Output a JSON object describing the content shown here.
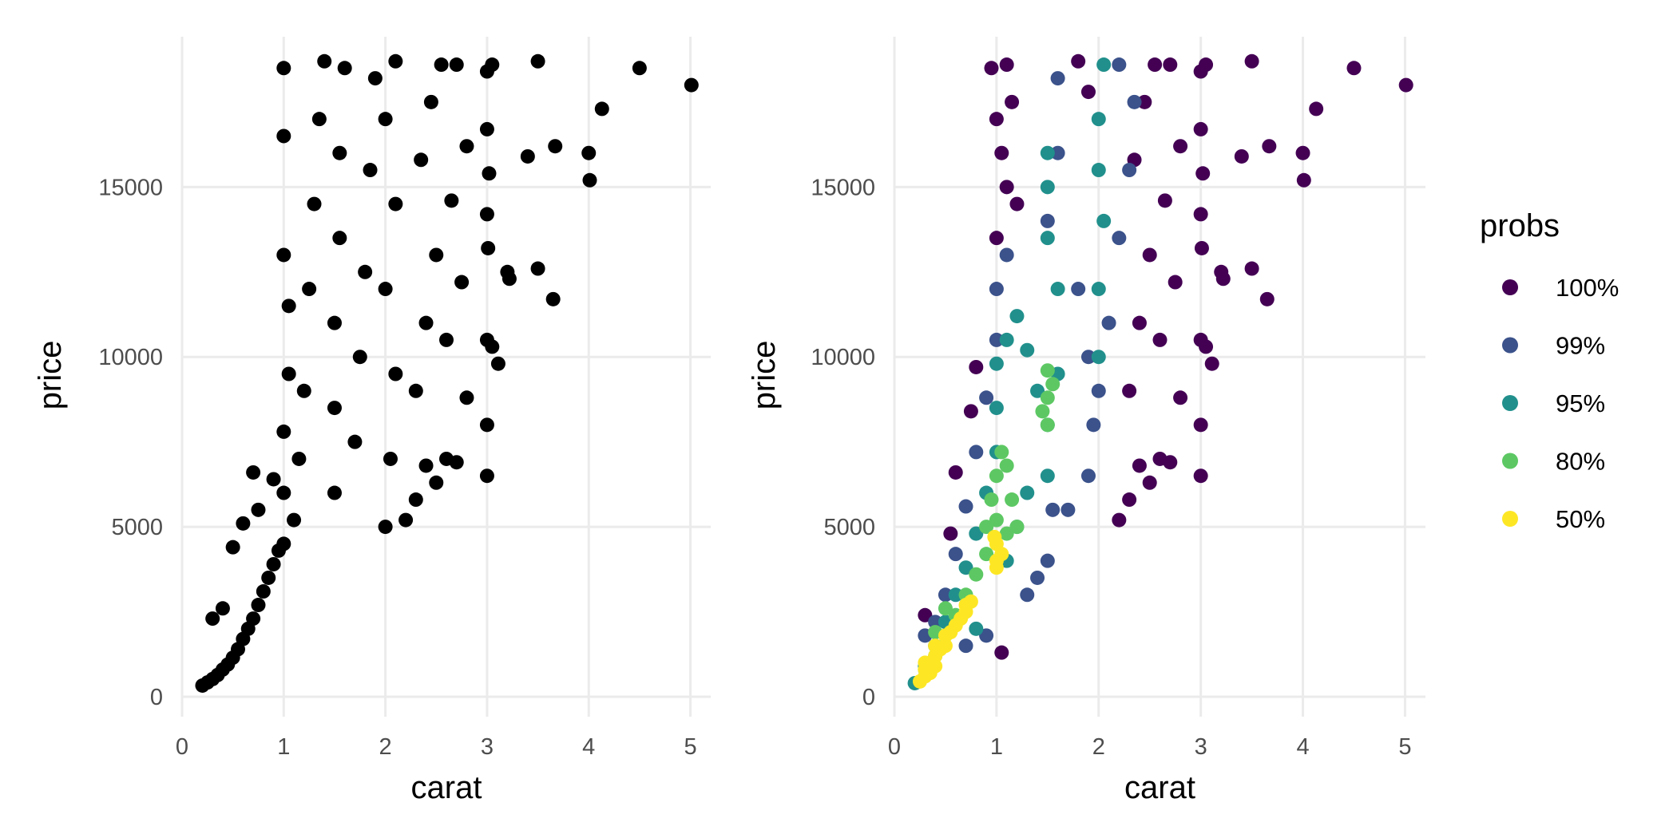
{
  "chart_data": [
    {
      "type": "scatter",
      "panel": "left",
      "xlabel": "carat",
      "ylabel": "price",
      "xlim": [
        0,
        5.2
      ],
      "ylim": [
        0,
        19000
      ],
      "xticks": [
        0,
        1,
        2,
        3,
        4,
        5
      ],
      "yticks": [
        0,
        5000,
        10000,
        15000
      ],
      "grid": true,
      "point_color": "#000000",
      "points": [
        [
          0.2,
          330
        ],
        [
          0.25,
          420
        ],
        [
          0.3,
          520
        ],
        [
          0.35,
          640
        ],
        [
          0.4,
          800
        ],
        [
          0.45,
          950
        ],
        [
          0.5,
          1150
        ],
        [
          0.55,
          1400
        ],
        [
          0.6,
          1700
        ],
        [
          0.65,
          2000
        ],
        [
          0.7,
          2300
        ],
        [
          0.75,
          2700
        ],
        [
          0.8,
          3100
        ],
        [
          0.85,
          3500
        ],
        [
          0.9,
          3900
        ],
        [
          0.95,
          4300
        ],
        [
          0.5,
          4400
        ],
        [
          0.6,
          5100
        ],
        [
          0.7,
          6600
        ],
        [
          0.3,
          2300
        ],
        [
          0.4,
          2600
        ],
        [
          0.75,
          5500
        ],
        [
          0.9,
          6400
        ],
        [
          1.0,
          4500
        ],
        [
          1.0,
          6000
        ],
        [
          1.0,
          7800
        ],
        [
          1.05,
          9500
        ],
        [
          1.05,
          11500
        ],
        [
          1.0,
          13000
        ],
        [
          1.0,
          16500
        ],
        [
          1.0,
          18500
        ],
        [
          1.1,
          5200
        ],
        [
          1.15,
          7000
        ],
        [
          1.2,
          9000
        ],
        [
          1.25,
          12000
        ],
        [
          1.3,
          14500
        ],
        [
          1.35,
          17000
        ],
        [
          1.4,
          18700
        ],
        [
          1.5,
          6000
        ],
        [
          1.5,
          8500
        ],
        [
          1.5,
          11000
        ],
        [
          1.55,
          13500
        ],
        [
          1.55,
          16000
        ],
        [
          1.6,
          18500
        ],
        [
          1.7,
          7500
        ],
        [
          1.75,
          10000
        ],
        [
          1.8,
          12500
        ],
        [
          1.85,
          15500
        ],
        [
          1.9,
          18200
        ],
        [
          2.0,
          5000
        ],
        [
          2.05,
          7000
        ],
        [
          2.1,
          9500
        ],
        [
          2.0,
          12000
        ],
        [
          2.1,
          14500
        ],
        [
          2.0,
          17000
        ],
        [
          2.1,
          18700
        ],
        [
          2.2,
          5200
        ],
        [
          2.3,
          5800
        ],
        [
          2.4,
          6800
        ],
        [
          2.5,
          6300
        ],
        [
          2.3,
          9000
        ],
        [
          2.4,
          11000
        ],
        [
          2.5,
          13000
        ],
        [
          2.35,
          15800
        ],
        [
          2.45,
          17500
        ],
        [
          2.55,
          18600
        ],
        [
          2.6,
          7000
        ],
        [
          2.7,
          6900
        ],
        [
          2.8,
          8800
        ],
        [
          2.6,
          10500
        ],
        [
          2.75,
          12200
        ],
        [
          2.65,
          14600
        ],
        [
          2.8,
          16200
        ],
        [
          2.7,
          18600
        ],
        [
          3.0,
          6500
        ],
        [
          3.0,
          8000
        ],
        [
          3.0,
          10500
        ],
        [
          3.01,
          13200
        ],
        [
          3.0,
          14200
        ],
        [
          3.02,
          15400
        ],
        [
          3.0,
          16700
        ],
        [
          3.0,
          18400
        ],
        [
          3.05,
          18600
        ],
        [
          3.05,
          10300
        ],
        [
          3.11,
          9800
        ],
        [
          3.22,
          12300
        ],
        [
          3.2,
          12500
        ],
        [
          3.4,
          15900
        ],
        [
          3.5,
          12600
        ],
        [
          3.5,
          18700
        ],
        [
          3.65,
          11700
        ],
        [
          3.67,
          16200
        ],
        [
          4.0,
          16000
        ],
        [
          4.01,
          15200
        ],
        [
          4.13,
          17300
        ],
        [
          4.5,
          18500
        ],
        [
          5.01,
          18000
        ]
      ]
    },
    {
      "type": "scatter",
      "panel": "right",
      "xlabel": "carat",
      "ylabel": "price",
      "xlim": [
        0,
        5.2
      ],
      "ylim": [
        0,
        19000
      ],
      "xticks": [
        0,
        1,
        2,
        3,
        4,
        5
      ],
      "yticks": [
        0,
        5000,
        10000,
        15000
      ],
      "grid": true,
      "legend": {
        "title": "probs",
        "placement": "right",
        "entries": [
          {
            "label": "100%",
            "color": "#440154"
          },
          {
            "label": "99%",
            "color": "#3b528b"
          },
          {
            "label": "95%",
            "color": "#21908c"
          },
          {
            "label": "80%",
            "color": "#5dc863"
          },
          {
            "label": "50%",
            "color": "#fde725"
          }
        ]
      },
      "series": [
        {
          "name": "100%",
          "color": "#440154",
          "points": [
            [
              0.95,
              18500
            ],
            [
              1.1,
              18600
            ],
            [
              1.0,
              17000
            ],
            [
              1.05,
              16000
            ],
            [
              1.1,
              15000
            ],
            [
              1.0,
              13500
            ],
            [
              1.2,
              14500
            ],
            [
              1.15,
              17500
            ],
            [
              1.8,
              18700
            ],
            [
              1.9,
              17800
            ],
            [
              2.2,
              5200
            ],
            [
              2.3,
              5800
            ],
            [
              2.4,
              6800
            ],
            [
              2.5,
              6300
            ],
            [
              2.3,
              9000
            ],
            [
              2.4,
              11000
            ],
            [
              2.5,
              13000
            ],
            [
              2.35,
              15800
            ],
            [
              2.45,
              17500
            ],
            [
              2.55,
              18600
            ],
            [
              2.6,
              7000
            ],
            [
              2.7,
              6900
            ],
            [
              2.8,
              8800
            ],
            [
              2.6,
              10500
            ],
            [
              2.75,
              12200
            ],
            [
              2.65,
              14600
            ],
            [
              2.8,
              16200
            ],
            [
              2.7,
              18600
            ],
            [
              3.0,
              6500
            ],
            [
              3.0,
              8000
            ],
            [
              3.0,
              10500
            ],
            [
              3.01,
              13200
            ],
            [
              3.0,
              14200
            ],
            [
              3.02,
              15400
            ],
            [
              3.0,
              16700
            ],
            [
              3.0,
              18400
            ],
            [
              3.05,
              18600
            ],
            [
              3.05,
              10300
            ],
            [
              3.11,
              9800
            ],
            [
              3.22,
              12300
            ],
            [
              3.2,
              12500
            ],
            [
              3.4,
              15900
            ],
            [
              3.5,
              12600
            ],
            [
              3.5,
              18700
            ],
            [
              3.65,
              11700
            ],
            [
              3.67,
              16200
            ],
            [
              4.0,
              16000
            ],
            [
              4.01,
              15200
            ],
            [
              4.13,
              17300
            ],
            [
              4.5,
              18500
            ],
            [
              5.01,
              18000
            ],
            [
              0.55,
              4800
            ],
            [
              0.6,
              6600
            ],
            [
              0.75,
              8400
            ],
            [
              0.8,
              9700
            ],
            [
              1.05,
              1300
            ],
            [
              0.3,
              2400
            ]
          ]
        },
        {
          "name": "99%",
          "color": "#3b528b",
          "points": [
            [
              0.3,
              1800
            ],
            [
              0.4,
              2200
            ],
            [
              0.5,
              3000
            ],
            [
              0.6,
              4200
            ],
            [
              0.7,
              5600
            ],
            [
              0.8,
              7200
            ],
            [
              0.9,
              8800
            ],
            [
              1.0,
              10500
            ],
            [
              1.0,
              12000
            ],
            [
              1.1,
              13000
            ],
            [
              1.5,
              14000
            ],
            [
              1.6,
              16000
            ],
            [
              1.6,
              18200
            ],
            [
              1.8,
              12000
            ],
            [
              1.9,
              10000
            ],
            [
              2.0,
              9000
            ],
            [
              2.1,
              11000
            ],
            [
              2.2,
              13500
            ],
            [
              2.3,
              15500
            ],
            [
              2.35,
              17500
            ],
            [
              2.2,
              18600
            ],
            [
              1.3,
              3000
            ],
            [
              1.4,
              3500
            ],
            [
              1.5,
              4000
            ],
            [
              1.55,
              5500
            ],
            [
              1.7,
              5500
            ],
            [
              1.9,
              6500
            ],
            [
              1.95,
              8000
            ],
            [
              0.7,
              1500
            ],
            [
              0.9,
              1800
            ]
          ]
        },
        {
          "name": "95%",
          "color": "#21908c",
          "points": [
            [
              0.2,
              400
            ],
            [
              0.3,
              900
            ],
            [
              0.4,
              1500
            ],
            [
              0.5,
              2200
            ],
            [
              0.6,
              3000
            ],
            [
              0.7,
              3800
            ],
            [
              0.8,
              4800
            ],
            [
              0.9,
              6000
            ],
            [
              1.0,
              7200
            ],
            [
              1.0,
              8500
            ],
            [
              1.0,
              9800
            ],
            [
              1.1,
              10500
            ],
            [
              1.2,
              11200
            ],
            [
              1.3,
              10200
            ],
            [
              1.4,
              9000
            ],
            [
              1.5,
              8000
            ],
            [
              1.5,
              6500
            ],
            [
              1.6,
              9500
            ],
            [
              1.6,
              12000
            ],
            [
              1.5,
              13500
            ],
            [
              1.5,
              15000
            ],
            [
              1.5,
              16000
            ],
            [
              2.0,
              10000
            ],
            [
              2.0,
              12000
            ],
            [
              2.05,
              14000
            ],
            [
              2.0,
              15500
            ],
            [
              2.0,
              17000
            ],
            [
              2.05,
              18600
            ],
            [
              1.1,
              4000
            ],
            [
              1.2,
              5000
            ],
            [
              1.3,
              6000
            ],
            [
              0.8,
              2000
            ]
          ]
        },
        {
          "name": "80%",
          "color": "#5dc863",
          "points": [
            [
              0.3,
              800
            ],
            [
              0.4,
              1200
            ],
            [
              0.5,
              1800
            ],
            [
              0.6,
              2400
            ],
            [
              0.7,
              3000
            ],
            [
              0.8,
              3600
            ],
            [
              0.9,
              4200
            ],
            [
              0.9,
              5000
            ],
            [
              0.95,
              5800
            ],
            [
              1.0,
              6500
            ],
            [
              1.05,
              7200
            ],
            [
              1.1,
              6800
            ],
            [
              1.15,
              5800
            ],
            [
              1.2,
              5000
            ],
            [
              1.1,
              4800
            ],
            [
              1.0,
              5200
            ],
            [
              1.5,
              8000
            ],
            [
              1.5,
              8800
            ],
            [
              1.5,
              9600
            ],
            [
              1.45,
              8400
            ],
            [
              1.55,
              9200
            ],
            [
              0.4,
              1900
            ],
            [
              0.5,
              2600
            ]
          ]
        },
        {
          "name": "50%",
          "color": "#fde725",
          "points": [
            [
              0.25,
              450
            ],
            [
              0.3,
              600
            ],
            [
              0.3,
              800
            ],
            [
              0.35,
              700
            ],
            [
              0.35,
              1000
            ],
            [
              0.4,
              900
            ],
            [
              0.4,
              1200
            ],
            [
              0.45,
              1400
            ],
            [
              0.5,
              1500
            ],
            [
              0.5,
              1800
            ],
            [
              0.55,
              1900
            ],
            [
              0.6,
              2100
            ],
            [
              0.65,
              2300
            ],
            [
              0.7,
              2500
            ],
            [
              0.75,
              2800
            ],
            [
              0.7,
              2700
            ],
            [
              0.3,
              1000
            ],
            [
              0.4,
              1500
            ],
            [
              1.0,
              4000
            ],
            [
              1.0,
              4500
            ],
            [
              1.0,
              3800
            ],
            [
              1.05,
              4200
            ],
            [
              0.98,
              4700
            ]
          ]
        }
      ]
    }
  ]
}
